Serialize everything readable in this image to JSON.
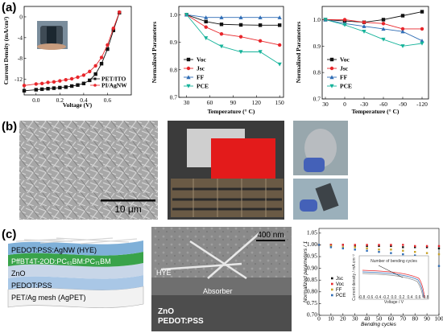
{
  "panel_labels": {
    "a": "(a)",
    "b": "(b)",
    "c": "(c)"
  },
  "colors": {
    "black": "#111111",
    "red": "#e8262b",
    "blue": "#2f6db5",
    "teal": "#15b39a"
  },
  "chart_data": [
    {
      "type": "line",
      "xlabel": "Voltage (V)",
      "ylabel": "Current Density (mA/cm²)",
      "xlim": [
        -0.1,
        0.8
      ],
      "ylim": [
        -15,
        2
      ],
      "xticks": [
        "0.0",
        "0.2",
        "0.4",
        "0.6"
      ],
      "yticks": [
        "0",
        "-4",
        "-8",
        "-12"
      ],
      "legend_position": "bottom-right",
      "series": [
        {
          "name": "PET/ITO",
          "color": "#111111",
          "marker": "square",
          "x": [
            -0.1,
            0,
            0.05,
            0.1,
            0.15,
            0.2,
            0.25,
            0.3,
            0.35,
            0.4,
            0.45,
            0.5,
            0.55,
            0.6,
            0.65,
            0.7
          ],
          "y": [
            -14.2,
            -14.0,
            -13.9,
            -13.8,
            -13.7,
            -13.6,
            -13.5,
            -13.3,
            -13.1,
            -12.8,
            -12.2,
            -11.0,
            -9.0,
            -6.2,
            -2.6,
            0.8
          ]
        },
        {
          "name": "PI/AgNW",
          "color": "#e8262b",
          "marker": "circle",
          "x": [
            -0.1,
            0,
            0.05,
            0.1,
            0.15,
            0.2,
            0.25,
            0.3,
            0.35,
            0.4,
            0.45,
            0.5,
            0.55,
            0.6,
            0.65,
            0.7
          ],
          "y": [
            -13.2,
            -12.9,
            -12.8,
            -12.6,
            -12.5,
            -12.3,
            -12.1,
            -11.9,
            -11.6,
            -11.2,
            -10.5,
            -9.4,
            -7.8,
            -5.4,
            -2.2,
            0.9
          ]
        }
      ]
    },
    {
      "type": "line",
      "xlabel": "Temperature (° C)",
      "ylabel": "Normalized Parameters",
      "xlim": [
        20,
        155
      ],
      "ylim": [
        0.7,
        1.03
      ],
      "xticks": [
        "30",
        "60",
        "90",
        "120",
        "150"
      ],
      "yticks": [
        "0.7",
        "0.8",
        "0.9",
        "1.0"
      ],
      "legend_position": "bottom-left",
      "series": [
        {
          "name": "Voc",
          "color": "#111111",
          "marker": "square",
          "x": [
            30,
            55,
            75,
            100,
            125,
            150
          ],
          "y": [
            1.0,
            0.975,
            0.965,
            0.963,
            0.962,
            0.962
          ]
        },
        {
          "name": "Jsc",
          "color": "#e8262b",
          "marker": "circle",
          "x": [
            30,
            55,
            75,
            100,
            125,
            150
          ],
          "y": [
            1.0,
            0.955,
            0.93,
            0.92,
            0.905,
            0.89
          ]
        },
        {
          "name": "FF",
          "color": "#2f6db5",
          "marker": "triangle",
          "x": [
            30,
            55,
            75,
            100,
            125,
            150
          ],
          "y": [
            1.0,
            0.99,
            0.99,
            0.99,
            0.99,
            0.99
          ]
        },
        {
          "name": "PCE",
          "color": "#15b39a",
          "marker": "triangle-down",
          "x": [
            30,
            55,
            75,
            100,
            125,
            150
          ],
          "y": [
            1.0,
            0.915,
            0.885,
            0.865,
            0.865,
            0.82
          ]
        }
      ]
    },
    {
      "type": "line",
      "xlabel": "Temperature (° C)",
      "ylabel": "Normalized Parameters",
      "xlim": [
        35,
        -130
      ],
      "ylim": [
        0.7,
        1.05
      ],
      "xticks": [
        "30",
        "0",
        "-30",
        "-60",
        "-90",
        "-120"
      ],
      "yticks": [
        "0.7",
        "0.8",
        "0.9",
        "1.0"
      ],
      "legend_position": "bottom-left",
      "series": [
        {
          "name": "Voc",
          "color": "#111111",
          "marker": "square",
          "x": [
            30,
            0,
            -30,
            -60,
            -90,
            -120
          ],
          "y": [
            1.0,
            0.995,
            0.99,
            1.0,
            1.015,
            1.03
          ]
        },
        {
          "name": "Jsc",
          "color": "#e8262b",
          "marker": "circle",
          "x": [
            30,
            0,
            -30,
            -60,
            -90,
            -120
          ],
          "y": [
            1.0,
            1.0,
            0.99,
            0.985,
            0.965,
            0.965
          ]
        },
        {
          "name": "FF",
          "color": "#2f6db5",
          "marker": "triangle",
          "x": [
            30,
            0,
            -30,
            -60,
            -90,
            -120
          ],
          "y": [
            1.0,
            0.985,
            0.975,
            0.965,
            0.955,
            0.92
          ]
        },
        {
          "name": "PCE",
          "color": "#15b39a",
          "marker": "triangle-down",
          "x": [
            30,
            0,
            -30,
            -60,
            -90,
            -120
          ],
          "y": [
            1.0,
            0.98,
            0.955,
            0.925,
            0.9,
            0.91
          ]
        }
      ]
    },
    {
      "type": "scatter",
      "xlabel": "Bending cycles",
      "ylabel": "Normalized parameters / 1",
      "xlim": [
        0,
        100
      ],
      "ylim": [
        0.7,
        1.07
      ],
      "xticks": [
        "0",
        "10",
        "20",
        "30",
        "40",
        "50",
        "60",
        "70",
        "80",
        "90",
        "100"
      ],
      "yticks": [
        "0.70",
        "0.75",
        "0.80",
        "0.85",
        "0.90",
        "0.95",
        "1.00",
        "1.05"
      ],
      "legend_position": "center-left",
      "series": [
        {
          "name": "Jsc",
          "color": "#111111",
          "x": [
            0,
            10,
            20,
            30,
            40,
            50,
            60,
            70,
            80,
            90,
            100
          ],
          "y": [
            1.0,
            1.0,
            1.0,
            0.995,
            0.995,
            0.995,
            0.995,
            0.99,
            0.99,
            0.99,
            0.985
          ]
        },
        {
          "name": "Voc",
          "color": "#e8262b",
          "x": [
            0,
            10,
            20,
            30,
            40,
            50,
            60,
            70,
            80,
            90,
            100
          ],
          "y": [
            1.0,
            1.0,
            1.0,
            1.0,
            1.0,
            1.0,
            1.0,
            1.0,
            0.995,
            0.995,
            0.995
          ]
        },
        {
          "name": "FF",
          "color": "#c9a227",
          "x": [
            0,
            10,
            20,
            30,
            40,
            50,
            60,
            70,
            80,
            90,
            100
          ],
          "y": [
            1.0,
            0.995,
            0.99,
            0.99,
            0.985,
            0.98,
            0.98,
            0.975,
            0.97,
            0.965,
            0.96
          ]
        },
        {
          "name": "PCE",
          "color": "#2f6db5",
          "x": [
            0,
            10,
            20,
            30,
            40,
            50,
            60,
            70,
            80,
            90,
            100
          ],
          "y": [
            1.0,
            0.99,
            0.985,
            0.98,
            0.975,
            0.97,
            0.965,
            0.96,
            0.955,
            0.945,
            0.91
          ]
        }
      ],
      "inset": {
        "title": "Number of bending cycles",
        "xlabel": "Voltage / V",
        "ylabel": "Current density / mA cm⁻²",
        "xticks": [
          "-0.8",
          "-0.6",
          "-0.4",
          "-0.2",
          "0.0",
          "0.2",
          "0.4",
          "0.6",
          "0.8"
        ]
      }
    }
  ],
  "images": {
    "sem_scale_bar": "10 μm",
    "tem_scale_bar": "400 nm",
    "tem_labels": [
      "HYE",
      "Absorber",
      "ZnO",
      "PEDOT:PSS"
    ]
  },
  "device_stack": {
    "layers": [
      "PEDOT:PSS:AgNW (HYE)",
      "PffBT4T-2OD:PC₆₁BM:PC₇₁BM",
      "ZnO",
      "PEDOT:PSS",
      "PET/Ag mesh (AgPET)"
    ],
    "colors": [
      "#7fb0d8",
      "#39a34a",
      "#c8d6e8",
      "#a9c7e6",
      "#f2f2f2"
    ]
  }
}
